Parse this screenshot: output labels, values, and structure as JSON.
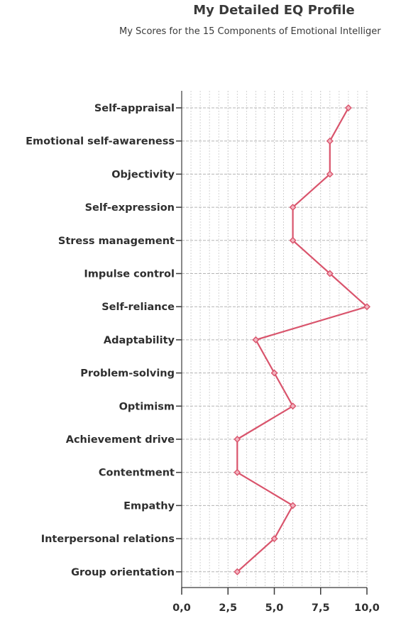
{
  "chart_data": {
    "type": "line",
    "title": "My Detailed EQ Profile",
    "subtitle": "My Scores for the 15 Components of Emotional Intelliger",
    "categories": [
      "Self-appraisal",
      "Emotional self-awareness",
      "Objectivity",
      "Self-expression",
      "Stress management",
      "Impulse control",
      "Self-reliance",
      "Adaptability",
      "Problem-solving",
      "Optimism",
      "Achievement drive",
      "Contentment",
      "Empathy",
      "Interpersonal relations",
      "Group orientation"
    ],
    "values": [
      9,
      8,
      8,
      6,
      6,
      8,
      10,
      4,
      5,
      6,
      3,
      3,
      6,
      5,
      3
    ],
    "xlim": [
      0,
      10
    ],
    "x_ticks": [
      "0,0",
      "2,5",
      "5,0",
      "7,5",
      "10,0"
    ],
    "x_tick_values": [
      0,
      2.5,
      5,
      7.5,
      10
    ],
    "orientation": "horizontal",
    "grid": true,
    "line_color": "#d9546c",
    "grid_color": "#c8c8c8",
    "axis_color": "#3a3a3a"
  }
}
